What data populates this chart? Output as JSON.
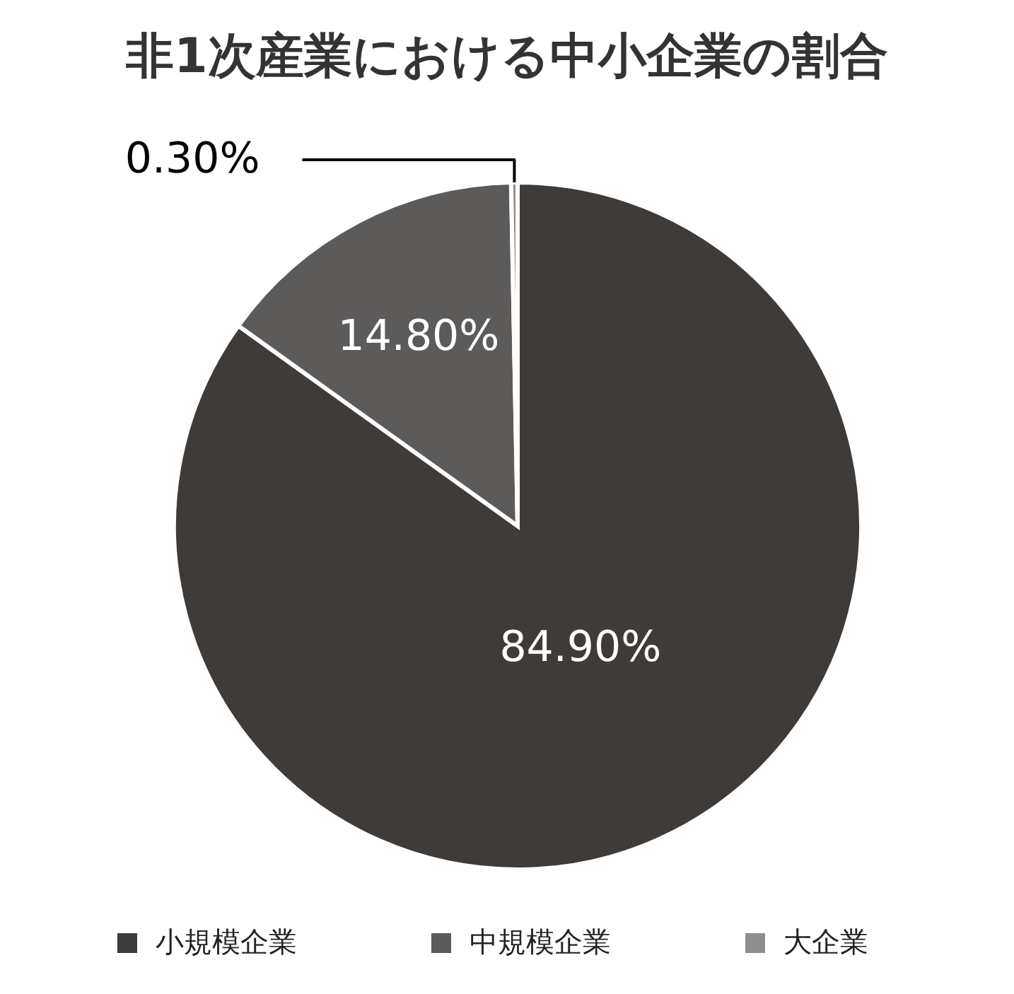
{
  "chart_data": {
    "type": "pie",
    "title": "非1次産業における中小企業の割合",
    "categories": [
      "小規模企業",
      "中規模企業",
      "大企業"
    ],
    "values": [
      84.9,
      14.8,
      0.3
    ],
    "colors": [
      "#3f3b39",
      "#5d5b5a",
      "#8e8e8e"
    ],
    "value_labels": [
      "84.90%",
      "14.80%",
      "0.30%"
    ],
    "legend": "bottom"
  }
}
